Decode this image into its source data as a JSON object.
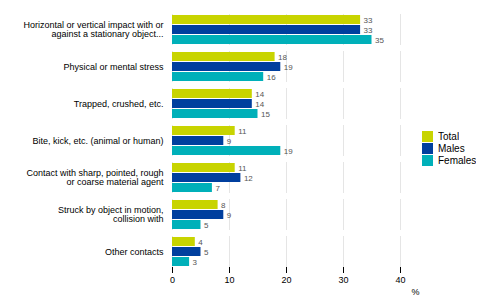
{
  "chart_data": {
    "type": "bar",
    "orientation": "horizontal",
    "categories": [
      "Horizontal or vertical impact with or\nagainst a stationary object...",
      "Physical or mental stress",
      "Trapped, crushed, etc.",
      "Bite, kick, etc. (animal or human)",
      "Contact with sharp, pointed, rough\nor coarse material agent",
      "Struck by object in motion,\ncollision with",
      "Other contacts"
    ],
    "series": [
      {
        "name": "Total",
        "color": "#c8d400",
        "values": [
          33,
          18,
          14,
          11,
          11,
          8,
          4
        ]
      },
      {
        "name": "Males",
        "color": "#003f9e",
        "values": [
          33,
          19,
          14,
          9,
          12,
          9,
          5
        ]
      },
      {
        "name": "Females",
        "color": "#00b0b9",
        "values": [
          35,
          16,
          15,
          19,
          7,
          5,
          3
        ]
      }
    ],
    "xlabel": "%",
    "xlim": [
      0,
      40
    ],
    "xticks": [
      0,
      10,
      20,
      30,
      40
    ],
    "grid": true,
    "data_labels": true,
    "legend": "right"
  }
}
